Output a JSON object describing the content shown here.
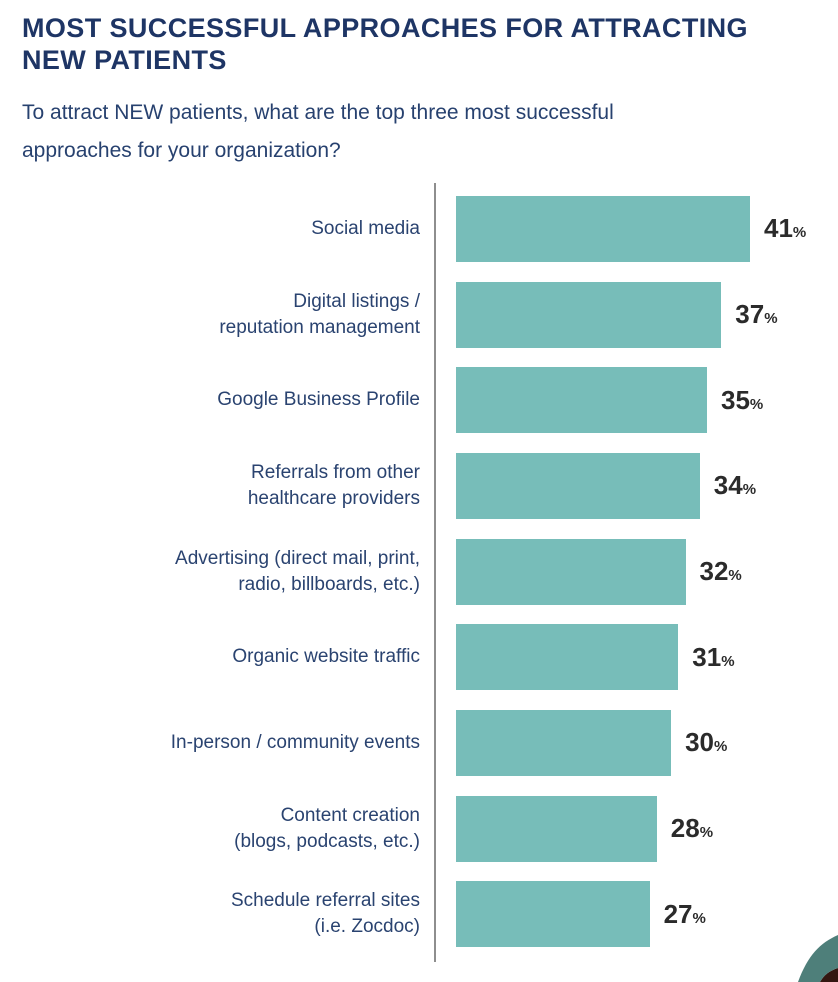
{
  "header": {
    "title": "MOST SUCCESSFUL APPROACHES FOR ATTRACTING\nNEW PATIENTS",
    "subtitle": "To attract NEW patients, what are the top three most successful\napproaches for your organization?"
  },
  "chart_data": {
    "type": "bar",
    "orientation": "horizontal",
    "title": "MOST SUCCESSFUL APPROACHES FOR ATTRACTING NEW PATIENTS",
    "xlabel": "",
    "ylabel": "",
    "xlim": [
      0,
      41
    ],
    "grid": false,
    "legend": false,
    "value_suffix": "%",
    "bar_color": "#77BDB9",
    "axis_line_color": "#8E8E8E",
    "categories": [
      "Social media",
      "Digital listings / reputation management",
      "Google Business Profile",
      "Referrals from other healthcare providers",
      "Advertising (direct mail, print, radio, billboards, etc.)",
      "Organic website traffic",
      "In-person / community events",
      "Content creation (blogs, podcasts, etc.)",
      "Schedule referral sites (i.e. Zocdoc)"
    ],
    "values": [
      41,
      37,
      35,
      34,
      32,
      31,
      30,
      28,
      27
    ],
    "rows": [
      {
        "label": "Social media",
        "value": 41
      },
      {
        "label": "Digital listings /\nreputation management",
        "value": 37
      },
      {
        "label": "Google Business Profile",
        "value": 35
      },
      {
        "label": "Referrals from other\nhealthcare providers",
        "value": 34
      },
      {
        "label": "Advertising (direct mail, print,\nradio, billboards, etc.)",
        "value": 32
      },
      {
        "label": "Organic website traffic",
        "value": 31
      },
      {
        "label": "In-person / community events",
        "value": 30
      },
      {
        "label": "Content creation\n(blogs, podcasts, etc.)",
        "value": 28
      },
      {
        "label": "Schedule referral sites\n(i.e. Zocdoc)",
        "value": 27
      }
    ]
  },
  "colors": {
    "title_text": "#1E3565",
    "subtitle_text": "#27416F",
    "label_text": "#2A4370",
    "value_text": "#2B2B2B",
    "bar": "#77BDB9",
    "axis_line": "#8E8E8E",
    "corner_teal": "#4E7F7A",
    "corner_dark": "#331610"
  }
}
